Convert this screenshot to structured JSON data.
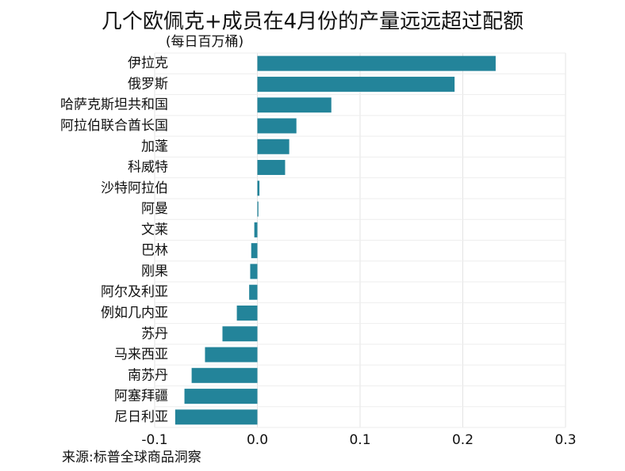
{
  "chart_data": {
    "type": "hbar",
    "title": "几个欧佩克+成员在4月份的产量远远超过配额",
    "subtitle": "(每日百万桶)",
    "source": "来源:标普全球商品洞察",
    "categories": [
      "伊拉克",
      "俄罗斯",
      "哈萨克斯坦共和国",
      "阿拉伯联合酋长国",
      "加蓬",
      "科威特",
      "沙特阿拉伯",
      "阿曼",
      "文莱",
      "巴林",
      "刚果",
      "阿尔及利亚",
      "例如几内亚",
      "苏丹",
      "马来西亚",
      "南苏丹",
      "阿塞拜疆",
      "尼日利亚"
    ],
    "values": [
      0.232,
      0.192,
      0.072,
      0.038,
      0.031,
      0.027,
      0.002,
      0.001,
      -0.003,
      -0.006,
      -0.007,
      -0.008,
      -0.02,
      -0.034,
      -0.051,
      -0.064,
      -0.071,
      -0.08
    ],
    "color": "#23849a",
    "xlim": [
      -0.1,
      0.3
    ],
    "xticks": [
      -0.1,
      {
        "value": 0,
        "label": "0.0"
      },
      0.1,
      0.2,
      0.3
    ],
    "grid": true
  }
}
